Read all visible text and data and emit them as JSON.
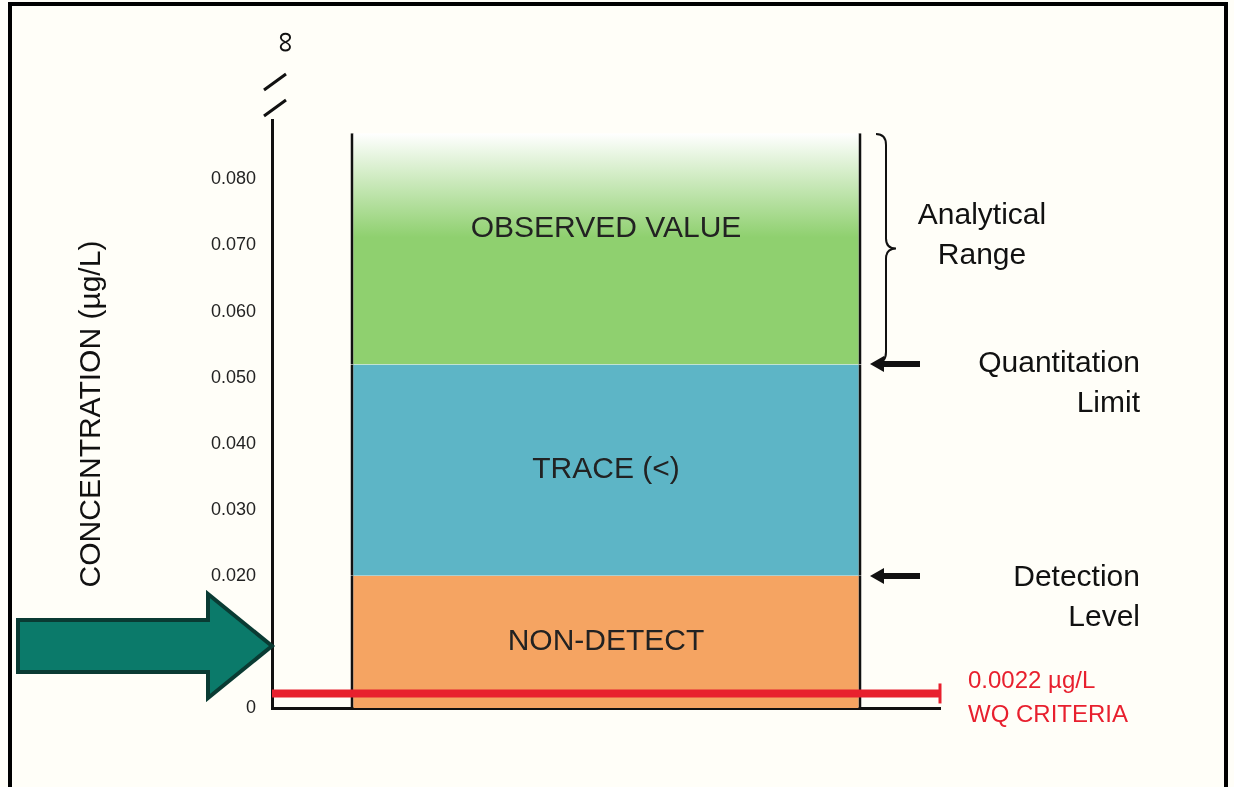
{
  "chart_data": {
    "type": "bar",
    "stacked": true,
    "categories": [
      null
    ],
    "ylabel": "CONCENTRATION (µg/L)",
    "ylim": [
      0,
      0.089
    ],
    "yticks": [
      0,
      {
        "value": 0.02,
        "label": "0.020"
      },
      {
        "value": 0.03,
        "label": "0.030"
      },
      {
        "value": 0.04,
        "label": "0.040"
      },
      {
        "value": 0.05,
        "label": "0.050"
      },
      {
        "value": 0.06,
        "label": "0.060"
      },
      {
        "value": 0.07,
        "label": "0.070"
      },
      {
        "value": 0.08,
        "label": "0.080"
      }
    ],
    "tick_labels": "y",
    "legend": false,
    "grid": false,
    "series": [
      {
        "name": "NON-DETECT",
        "color": "#f5a462",
        "values": [
          0.02
        ]
      },
      {
        "name": "TRACE (<)",
        "color": "#5db5c6",
        "values": [
          0.032
        ]
      },
      {
        "name": "OBSERVED VALUE",
        "color": "#8fd06f",
        "values": [
          0.035
        ]
      }
    ],
    "ref_lines": [
      {
        "axis": "y",
        "value": 0.0022,
        "label": "0.0022 µg/L WQ CRITERIA",
        "color": "#e8202e"
      }
    ],
    "annotations": [
      "Analytical Range",
      "Quantitation Limit",
      "Detection Level",
      "∞"
    ]
  }
}
